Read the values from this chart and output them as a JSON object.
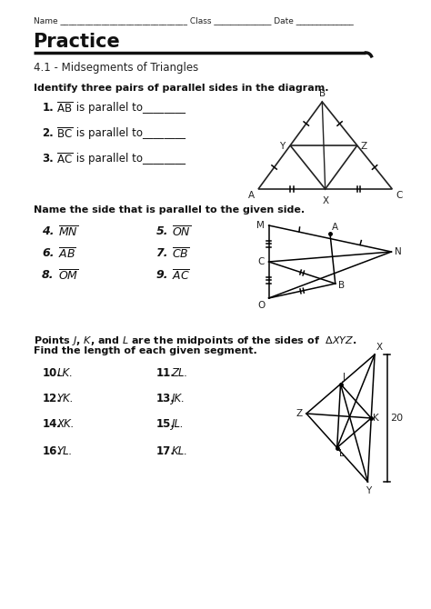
{
  "bg_color": "#ffffff",
  "text_color": "#1a1a1a",
  "header_text": "Name _______________________________ Class ______________ Date ______________",
  "title": "Practice",
  "subtitle": "4.1 - Midsegments of Triangles",
  "sec1_header": "Identify three pairs of parallel sides in the diagram.",
  "sec1_items": [
    [
      "1.",
      "AB",
      " is parallel to________"
    ],
    [
      "2.",
      "BC",
      " is parallel to________"
    ],
    [
      "3.",
      "AC",
      " is parallel to________"
    ]
  ],
  "sec2_header": "Name the side that is parallel to the given side.",
  "sec2_col1": [
    "4.",
    "MN",
    "6.",
    "AB",
    "8.",
    "OM"
  ],
  "sec2_col2": [
    "5.",
    "ON",
    "7.",
    "CB",
    "9.",
    "AC"
  ],
  "sec3_header1": "Points J, K, and L are the midpoints of the sides of  ΔXYZ.",
  "sec3_header2": "Find the length of each given segment.",
  "sec3_col1": [
    "10.",
    "LK.",
    "12.",
    "YK.",
    "14.",
    "XK.",
    "16.",
    "YL."
  ],
  "sec3_col2": [
    "11.",
    "ZL.",
    "13.",
    "JK.",
    "15.",
    "JL.",
    "17.",
    "KL."
  ]
}
